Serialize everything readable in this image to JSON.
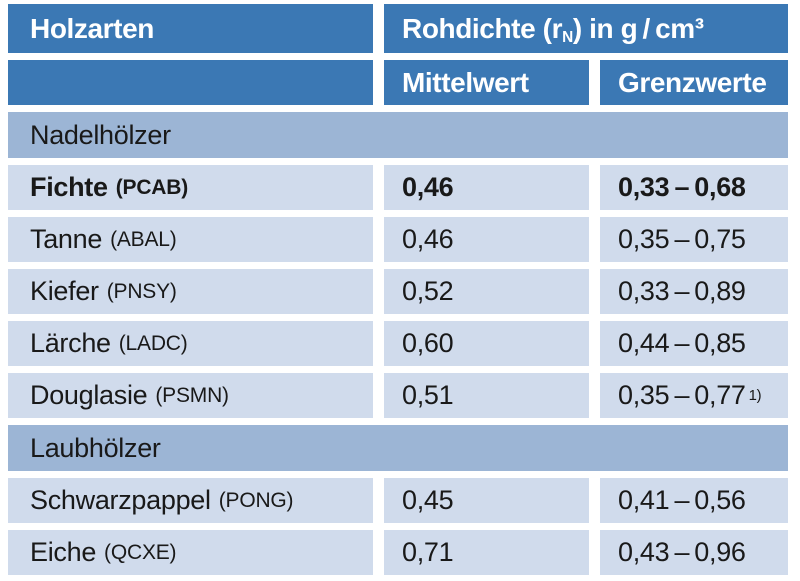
{
  "colors": {
    "header_bg": "#3b78b4",
    "section_bg": "#9cb5d5",
    "row_bg": "#d0dbec",
    "text_dark": "#191919",
    "text_light": "#ffffff"
  },
  "header": {
    "holzarten": "Holzarten",
    "rohdichte_pre": "Rohdichte (r",
    "rohdichte_sub": "N",
    "rohdichte_post": ") in g / cm³",
    "mittelwert": "Mittelwert",
    "grenzwerte": "Grenzwerte"
  },
  "sections": [
    {
      "label": "Nadelhölzer",
      "rows": [
        {
          "name": "Fichte",
          "code": "(PCAB)",
          "mittelwert": "0,46",
          "grenzwerte": "0,33 – 0,68",
          "emphasis": true
        },
        {
          "name": "Tanne",
          "code": "(ABAL)",
          "mittelwert": "0,46",
          "grenzwerte": "0,35 – 0,75"
        },
        {
          "name": "Kiefer",
          "code": "(PNSY)",
          "mittelwert": "0,52",
          "grenzwerte": "0,33 – 0,89"
        },
        {
          "name": "Lärche",
          "code": "(LADC)",
          "mittelwert": "0,60",
          "grenzwerte": "0,44 – 0,85"
        },
        {
          "name": "Douglasie",
          "code": "(PSMN)",
          "mittelwert": "0,51",
          "grenzwerte": "0,35 – 0,77",
          "note": "1)"
        }
      ]
    },
    {
      "label": "Laubhölzer",
      "rows": [
        {
          "name": "Schwarzpappel",
          "code": "(PONG)",
          "mittelwert": "0,45",
          "grenzwerte": "0,41 – 0,56"
        },
        {
          "name": "Eiche",
          "code": "(QCXE)",
          "mittelwert": "0,71",
          "grenzwerte": "0,43 – 0,96"
        }
      ]
    }
  ]
}
